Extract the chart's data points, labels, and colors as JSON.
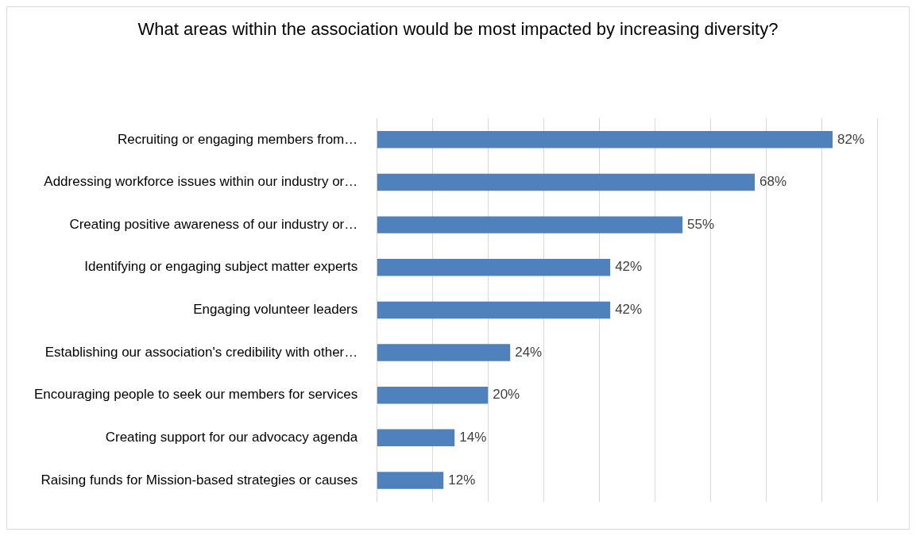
{
  "chart_data": {
    "type": "bar",
    "orientation": "horizontal",
    "title": "What areas within the association would be most impacted by increasing diversity?",
    "categories": [
      "Recruiting or engaging members from…",
      "Addressing workforce issues within our industry or…",
      "Creating positive awareness of our industry or…",
      "Identifying or engaging subject matter experts",
      "Engaging volunteer leaders",
      "Establishing our association's credibility with other…",
      "Encouraging people to seek our members for services",
      "Creating support for our advocacy agenda",
      "Raising funds for Mission-based strategies or causes"
    ],
    "values": [
      82,
      68,
      55,
      42,
      42,
      24,
      20,
      14,
      12
    ],
    "value_labels": [
      "82%",
      "68%",
      "55%",
      "42%",
      "42%",
      "24%",
      "20%",
      "14%",
      "12%"
    ],
    "color": "#4f81bd",
    "xlim": [
      0,
      90
    ],
    "xticks": [
      {
        "value": 0,
        "label": null
      },
      {
        "value": 10,
        "label": null
      },
      {
        "value": 20,
        "label": null
      },
      {
        "value": 30,
        "label": null
      },
      {
        "value": 40,
        "label": null
      },
      {
        "value": 50,
        "label": null
      },
      {
        "value": 60,
        "label": null
      },
      {
        "value": 70,
        "label": null
      },
      {
        "value": 80,
        "label": null
      },
      {
        "value": 90,
        "label": null
      }
    ],
    "grid": "x",
    "legend": false,
    "tick_labels": "y"
  }
}
